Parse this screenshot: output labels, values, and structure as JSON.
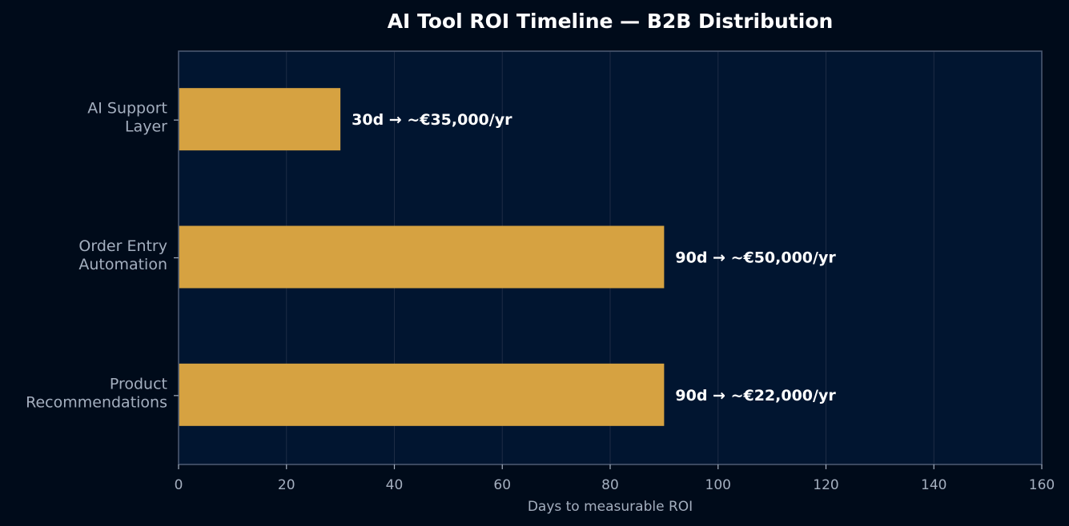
{
  "chart_data": {
    "type": "bar",
    "orientation": "horizontal",
    "title": "AI Tool ROI Timeline — B2B Distribution",
    "xlabel": "Days to measurable ROI",
    "ylabel": "",
    "categories": [
      [
        "AI Support",
        "Layer"
      ],
      [
        "Order Entry",
        "Automation"
      ],
      [
        "Product",
        "Recommendations"
      ]
    ],
    "values": [
      30,
      90,
      90
    ],
    "data_labels": [
      "30d → ~€35,000/yr",
      "90d → ~€50,000/yr",
      "90d → ~€22,000/yr"
    ],
    "xlim": [
      0,
      160
    ],
    "xticks": [
      0,
      20,
      40,
      60,
      80,
      100,
      120,
      140,
      160
    ],
    "grid": "vertical",
    "legend": "none"
  },
  "colors": {
    "background": "#000b1a",
    "plot_background": "#011530",
    "bar": "#d6a241",
    "spine": "#4a5870",
    "grid": "#1e2c45",
    "text_muted": "#a4afbf",
    "text_bright": "#ffffff"
  }
}
